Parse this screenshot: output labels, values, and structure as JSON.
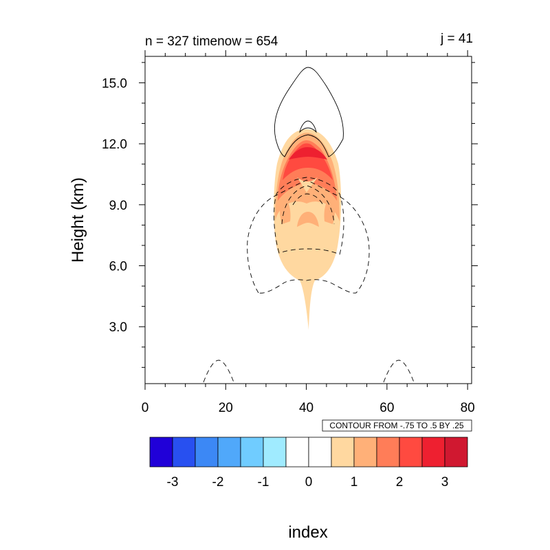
{
  "chart_data": {
    "type": "contour",
    "title_left": "n = 327 timenow = 654",
    "title_right": "j = 41",
    "xlabel": "index",
    "ylabel": "Height (km)",
    "xlim": [
      0,
      81
    ],
    "ylim": [
      0.2,
      16.3
    ],
    "x_ticks": [
      0,
      20,
      40,
      60,
      80
    ],
    "x_tick_labels": [
      "0",
      "20",
      "40",
      "60",
      "80"
    ],
    "y_ticks": [
      3.0,
      6.0,
      9.0,
      12.0,
      15.0
    ],
    "y_tick_labels": [
      "3.0",
      "6.0",
      "9.0",
      "12.0",
      "15.0"
    ],
    "contour_info": "CONTOUR FROM -.75 TO .5 BY .25",
    "colorbar": {
      "colors": [
        "#2000d8",
        "#2850f0",
        "#3c88f5",
        "#50a8fa",
        "#70ccff",
        "#a0ebff",
        "#ffffff",
        "#ffffff",
        "#ffd8a0",
        "#ffb078",
        "#ff7d58",
        "#ff4a40",
        "#ee2030",
        "#d01830"
      ],
      "labels": [
        "-3",
        "-2",
        "-1",
        "0",
        "1",
        "2",
        "3"
      ]
    },
    "filled_regions": [
      {
        "level": 1,
        "color": "#ffd8a0",
        "description": "plume from about 2.8 km to 12.7 km near index 41"
      },
      {
        "level": 2,
        "color": "#ffb078",
        "description": "band from about 8 km to 12.5 km"
      },
      {
        "level": 3,
        "color": "#ff7d58",
        "description": "core from about 9.5 km to 12.3 km"
      },
      {
        "level": 4,
        "color": "#ff4a40",
        "description": "cap from about 10.2 km to 12 km"
      },
      {
        "level": 5,
        "color": "#ee2030",
        "description": "peak near 11 km"
      }
    ],
    "line_contours": [
      {
        "style": "solid",
        "description": "outer positive loop peaking at 15.7 km"
      },
      {
        "style": "solid",
        "description": "inner positive loop peaking at 13 km"
      },
      {
        "style": "dashed",
        "description": "large negative envelope 4.6 km to 10.3 km"
      },
      {
        "style": "dashed",
        "description": "inner negative loop 6.5 km to 10.2 km"
      },
      {
        "style": "dashed",
        "description": "small negative bumps near index 18 and 63 at the surface"
      }
    ]
  }
}
